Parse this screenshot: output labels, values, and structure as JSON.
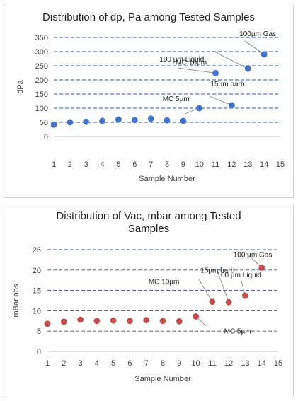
{
  "chart_data": [
    {
      "type": "scatter",
      "title": "Distribution of dp, Pa among Tested Samples",
      "xlabel": "Sample Number",
      "ylabel": "dPa",
      "xlim": [
        1,
        15
      ],
      "ylim": [
        0,
        350
      ],
      "xticks": [
        1,
        2,
        3,
        4,
        5,
        6,
        7,
        8,
        9,
        10,
        11,
        12,
        13,
        14,
        15
      ],
      "yticks": [
        0,
        50,
        100,
        150,
        200,
        250,
        300,
        350
      ],
      "grid": "horizontal dashed",
      "marker_color": "#4472C4",
      "points": [
        {
          "x": 1,
          "y": 42
        },
        {
          "x": 2,
          "y": 50
        },
        {
          "x": 3,
          "y": 52
        },
        {
          "x": 4,
          "y": 55
        },
        {
          "x": 5,
          "y": 60
        },
        {
          "x": 6,
          "y": 58
        },
        {
          "x": 7,
          "y": 63
        },
        {
          "x": 8,
          "y": 57
        },
        {
          "x": 9,
          "y": 55
        },
        {
          "x": 10,
          "y": 100
        },
        {
          "x": 11,
          "y": 224
        },
        {
          "x": 12,
          "y": 110
        },
        {
          "x": 13,
          "y": 240
        },
        {
          "x": 14,
          "y": 290
        }
      ],
      "annotations": [
        {
          "text": "MC 5µm",
          "x": 10,
          "y": 100
        },
        {
          "text": "MC 10µm",
          "x": 11,
          "y": 224
        },
        {
          "text": "15µm barb",
          "x": 12,
          "y": 110
        },
        {
          "text": "100 µm  Liquid",
          "x": 13,
          "y": 240
        },
        {
          "text": "100µm  Gas",
          "x": 14,
          "y": 290
        }
      ]
    },
    {
      "type": "scatter",
      "title": [
        "Distribution of  Vac, mbar among Tested",
        "Samples"
      ],
      "xlabel": "Sample Number",
      "ylabel": "mBar abs",
      "xlim": [
        1,
        15
      ],
      "ylim": [
        0,
        25
      ],
      "xticks": [
        1,
        2,
        3,
        4,
        5,
        6,
        7,
        8,
        9,
        10,
        11,
        12,
        13,
        14,
        15
      ],
      "yticks": [
        0,
        5,
        10,
        15,
        20,
        25
      ],
      "grid": "horizontal dashed",
      "marker_color": "#C0504D",
      "points": [
        {
          "x": 1,
          "y": 6.8
        },
        {
          "x": 2,
          "y": 7.3
        },
        {
          "x": 3,
          "y": 7.8
        },
        {
          "x": 4,
          "y": 7.5
        },
        {
          "x": 5,
          "y": 7.6
        },
        {
          "x": 6,
          "y": 7.5
        },
        {
          "x": 7,
          "y": 7.7
        },
        {
          "x": 8,
          "y": 7.5
        },
        {
          "x": 9,
          "y": 7.4
        },
        {
          "x": 10,
          "y": 8.6
        },
        {
          "x": 11,
          "y": 12.2
        },
        {
          "x": 12,
          "y": 12.1
        },
        {
          "x": 13,
          "y": 13.7
        },
        {
          "x": 14,
          "y": 20.6
        }
      ],
      "annotations": [
        {
          "text": "MC 5µm",
          "x": 10,
          "y": 8.6
        },
        {
          "text": "MC 10µm",
          "x": 11,
          "y": 12.2
        },
        {
          "text": "15µm barb",
          "x": 12,
          "y": 12.1
        },
        {
          "text": "100 µm  Liquid",
          "x": 13,
          "y": 13.7
        },
        {
          "text": "100 µm Gas",
          "x": 14,
          "y": 20.6
        }
      ]
    }
  ]
}
